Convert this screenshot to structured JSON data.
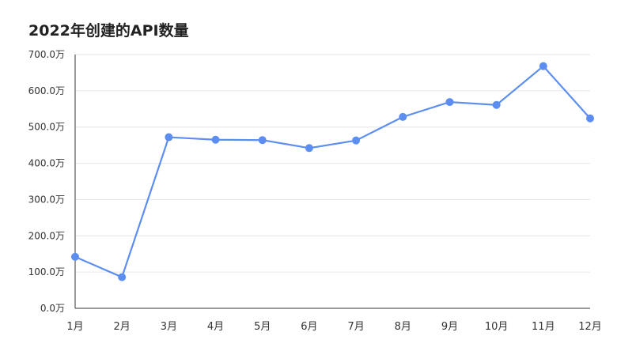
{
  "chart_data": {
    "type": "line",
    "title": "2022年创建的API数量",
    "categories": [
      "1月",
      "2月",
      "3月",
      "4月",
      "5月",
      "6月",
      "7月",
      "8月",
      "9月",
      "10月",
      "11月",
      "12月"
    ],
    "series": [
      {
        "values": [
          142,
          86,
          472,
          465,
          464,
          442,
          463,
          528,
          569,
          561,
          668,
          524
        ]
      }
    ],
    "y_ticks": [
      "0.0万",
      "100.0万",
      "200.0万",
      "300.0万",
      "400.0万",
      "500.0万",
      "600.0万",
      "700.0万"
    ],
    "ylim": [
      0,
      700
    ],
    "grid": true,
    "color": "#5b8ef0"
  }
}
